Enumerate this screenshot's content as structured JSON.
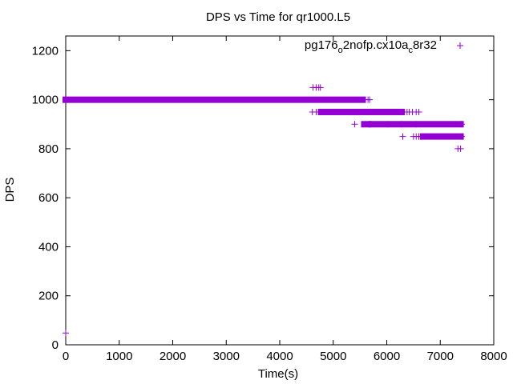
{
  "chart_data": {
    "type": "scatter",
    "title": "DPS vs Time for qr1000.L5",
    "xlabel": "Time(s)",
    "ylabel": "DPS",
    "xlim": [
      0,
      8000
    ],
    "ylim": [
      0,
      1260
    ],
    "xticks": [
      0,
      1000,
      2000,
      3000,
      4000,
      5000,
      6000,
      7000,
      8000
    ],
    "yticks": [
      0,
      200,
      400,
      600,
      800,
      1000,
      1200
    ],
    "grid": false,
    "legend_position": "top-right",
    "series": [
      {
        "name_parts": [
          {
            "text": "pg176",
            "sub": false
          },
          {
            "text": "o",
            "sub": true
          },
          {
            "text": "2nofp.cx10a",
            "sub": false
          },
          {
            "text": "c",
            "sub": true
          },
          {
            "text": "8r32",
            "sub": false
          }
        ],
        "color": "#9400d3",
        "marker": "plus",
        "segments": [
          {
            "x0": 0,
            "x1": 5550,
            "y": 1000
          },
          {
            "x0": 4780,
            "x1": 6280,
            "y": 950
          },
          {
            "x0": 5580,
            "x1": 5650,
            "y": 900
          },
          {
            "x0": 5720,
            "x1": 7380,
            "y": 900
          },
          {
            "x0": 6680,
            "x1": 7380,
            "y": 850
          }
        ],
        "points": [
          {
            "x": 0,
            "y": 48
          },
          {
            "x": 4620,
            "y": 1050
          },
          {
            "x": 4680,
            "y": 1050
          },
          {
            "x": 4730,
            "y": 1050
          },
          {
            "x": 4760,
            "y": 1050
          },
          {
            "x": 5650,
            "y": 1000
          },
          {
            "x": 5680,
            "y": 1000
          },
          {
            "x": 4610,
            "y": 950
          },
          {
            "x": 4680,
            "y": 950
          },
          {
            "x": 4720,
            "y": 950
          },
          {
            "x": 4750,
            "y": 950
          },
          {
            "x": 6300,
            "y": 950
          },
          {
            "x": 6380,
            "y": 950
          },
          {
            "x": 6420,
            "y": 950
          },
          {
            "x": 6480,
            "y": 950
          },
          {
            "x": 6550,
            "y": 950
          },
          {
            "x": 6600,
            "y": 950
          },
          {
            "x": 5400,
            "y": 900
          },
          {
            "x": 5680,
            "y": 900
          },
          {
            "x": 6020,
            "y": 900
          },
          {
            "x": 6280,
            "y": 900
          },
          {
            "x": 6550,
            "y": 900
          },
          {
            "x": 7400,
            "y": 900
          },
          {
            "x": 6300,
            "y": 850
          },
          {
            "x": 6500,
            "y": 850
          },
          {
            "x": 6550,
            "y": 850
          },
          {
            "x": 6600,
            "y": 850
          },
          {
            "x": 6650,
            "y": 850
          },
          {
            "x": 7400,
            "y": 850
          },
          {
            "x": 7330,
            "y": 800
          },
          {
            "x": 7380,
            "y": 800
          }
        ]
      }
    ]
  }
}
